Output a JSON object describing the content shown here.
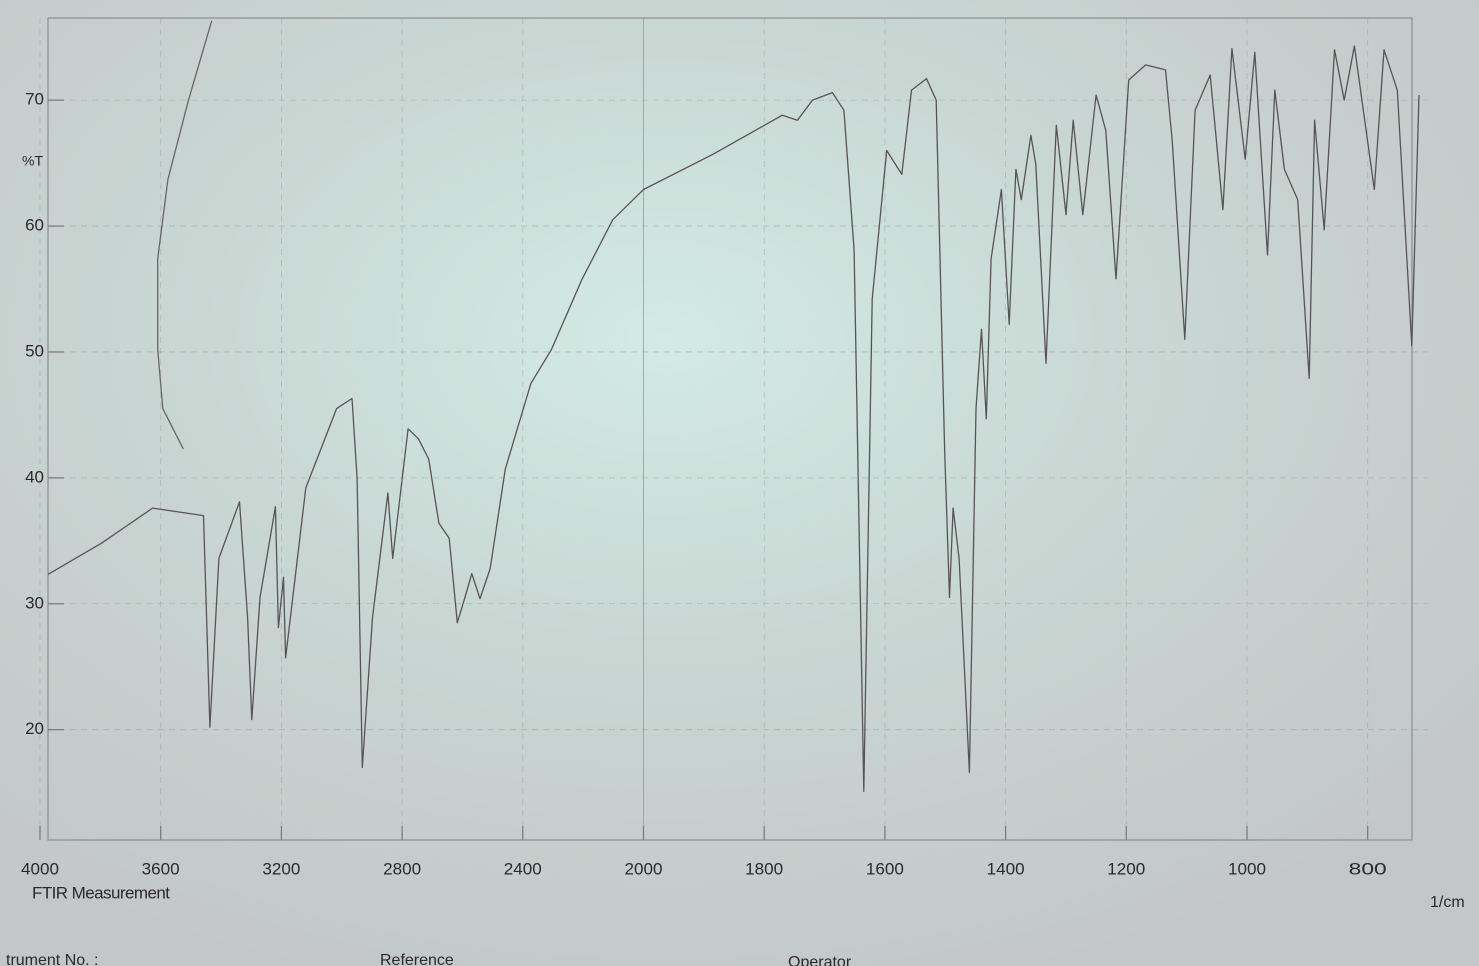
{
  "chart_data": {
    "type": "line",
    "ylabel": "%T",
    "xlabel": "1/cm",
    "annotations": [
      "FTIR Measurement",
      "trument No. :",
      "Reference",
      "Operator"
    ],
    "xlim": [
      4000,
      700
    ],
    "xticks": [
      4000,
      3600,
      3200,
      2800,
      2400,
      2000,
      1800,
      1600,
      1400,
      1200,
      1000,
      800
    ],
    "ylim": [
      11,
      77
    ],
    "yticks": [
      20,
      30,
      40,
      50,
      60,
      70
    ],
    "grid": true,
    "series": [
      {
        "color": "#555555",
        "x": [
          3983,
          3797,
          3627,
          3458,
          3437,
          3407,
          3339,
          3312,
          3298,
          3271,
          3220,
          3210,
          3193,
          3186,
          3119,
          3017,
          2966,
          2949,
          2932,
          2898,
          2847,
          2831,
          2780,
          2746,
          2712,
          2678,
          2644,
          2617,
          2593,
          2569,
          2542,
          2508,
          2458,
          2373,
          2305,
          2203,
          2102,
          2000,
          1885,
          1770,
          1745,
          1720,
          1687,
          1668,
          1651,
          1635,
          1621,
          1597,
          1572,
          1556,
          1531,
          1515,
          1501,
          1493,
          1487,
          1477,
          1460,
          1449,
          1440,
          1432,
          1424,
          1407,
          1394,
          1383,
          1374,
          1358,
          1350,
          1333,
          1316,
          1300,
          1288,
          1272,
          1250,
          1234,
          1217,
          1196,
          1168,
          1135,
          1124,
          1103,
          1086,
          1061,
          1040,
          1025,
          1003,
          987,
          966,
          954,
          938,
          916,
          897,
          888,
          872,
          855,
          839,
          822,
          789,
          773,
          751,
          727,
          715
        ],
        "values": [
          32.2,
          34.8,
          37.6,
          37.0,
          20.2,
          33.6,
          38.1,
          28.9,
          20.8,
          30.5,
          37.7,
          28.1,
          32.1,
          25.7,
          39.2,
          45.5,
          46.3,
          40.0,
          17.0,
          28.9,
          38.8,
          33.6,
          43.9,
          43.1,
          41.5,
          36.4,
          35.2,
          28.5,
          30.4,
          32.4,
          30.4,
          32.8,
          40.7,
          47.5,
          50.2,
          55.8,
          60.5,
          62.9,
          65.7,
          68.8,
          68.4,
          70.0,
          70.6,
          69.2,
          58.1,
          15.1,
          54.2,
          66.0,
          64.1,
          70.8,
          71.7,
          70.0,
          42.3,
          30.5,
          37.6,
          33.6,
          16.6,
          45.5,
          51.8,
          44.7,
          57.4,
          62.9,
          52.2,
          64.5,
          62.1,
          67.2,
          64.9,
          49.1,
          68.0,
          60.9,
          68.4,
          60.9,
          70.4,
          67.6,
          55.8,
          71.6,
          72.8,
          72.4,
          66.8,
          51.0,
          69.2,
          72.0,
          61.3,
          74.1,
          65.3,
          73.8,
          57.7,
          70.8,
          64.5,
          62.1,
          47.9,
          68.4,
          59.7,
          74.0,
          70.0,
          74.3,
          62.9,
          74.0,
          70.8,
          50.5,
          70.4
        ]
      },
      {
        "color": "#666666",
        "x": [
          3431,
          3508,
          3576,
          3610,
          3610,
          3593,
          3525
        ],
        "values": [
          76.3,
          70.0,
          63.7,
          57.4,
          50.2,
          45.5,
          42.3
        ]
      }
    ]
  }
}
